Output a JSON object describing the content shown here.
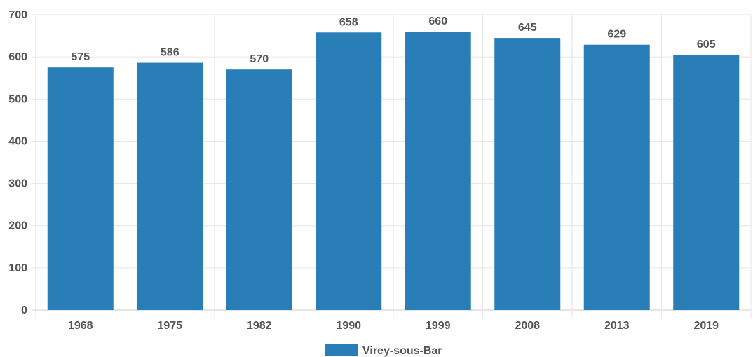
{
  "chart_data": {
    "type": "bar",
    "categories": [
      "1968",
      "1975",
      "1982",
      "1990",
      "1999",
      "2008",
      "2013",
      "2019"
    ],
    "series": [
      {
        "name": "Virey-sous-Bar",
        "values": [
          575,
          586,
          570,
          658,
          660,
          645,
          629,
          605
        ],
        "color": "#2a7eb8"
      }
    ],
    "ylim": [
      0,
      700
    ],
    "yticks": [
      0,
      100,
      200,
      300,
      400,
      500,
      600,
      700
    ],
    "grid": true,
    "data_labels": true,
    "legend_position": "bottom"
  }
}
